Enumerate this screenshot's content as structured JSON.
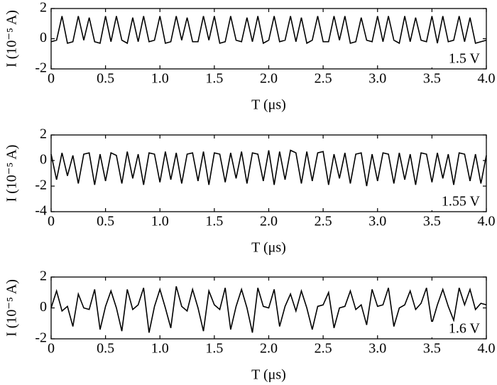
{
  "chart_data": [
    {
      "type": "line",
      "y_label": "I (10⁻⁵ A)",
      "x_label": "T (μs)",
      "annotation": "1.5 V",
      "color": "#000000",
      "xlim": [
        0,
        4
      ],
      "ylim": [
        -2,
        2
      ],
      "xticks": [
        0,
        0.5,
        {
          "value": 1,
          "label": "1.0"
        },
        1.5,
        {
          "value": 2,
          "label": "2.0"
        },
        2.5,
        {
          "value": 3,
          "label": "3.0"
        },
        3.5,
        {
          "value": 4,
          "label": "4.0"
        }
      ],
      "yticks": [
        -2,
        0,
        2
      ],
      "x": [
        0,
        0.05,
        0.1,
        0.15,
        0.2,
        0.25,
        0.3,
        0.35,
        0.4,
        0.45,
        0.5,
        0.55,
        0.6,
        0.65,
        0.7,
        0.75,
        0.8,
        0.85,
        0.9,
        0.95,
        1,
        1.05,
        1.1,
        1.15,
        1.2,
        1.25,
        1.3,
        1.35,
        1.4,
        1.45,
        1.5,
        1.55,
        1.6,
        1.65,
        1.7,
        1.75,
        1.8,
        1.85,
        1.9,
        1.95,
        2,
        2.05,
        2.1,
        2.15,
        2.2,
        2.25,
        2.3,
        2.35,
        2.4,
        2.45,
        2.5,
        2.55,
        2.6,
        2.65,
        2.7,
        2.75,
        2.8,
        2.85,
        2.9,
        2.95,
        3,
        3.05,
        3.1,
        3.15,
        3.2,
        3.25,
        3.3,
        3.35,
        3.4,
        3.45,
        3.5,
        3.55,
        3.6,
        3.65,
        3.7,
        3.75,
        3.8,
        3.85,
        3.9,
        3.95,
        4
      ],
      "values": [
        -0.2,
        -0.1,
        1.5,
        -0.3,
        -0.2,
        1.5,
        -0.1,
        1.4,
        -0.2,
        -0.3,
        1.5,
        -0.2,
        1.5,
        -0.1,
        -0.3,
        1.4,
        -0.2,
        1.5,
        -0.2,
        -0.1,
        1.5,
        -0.3,
        -0.2,
        1.5,
        -0.1,
        1.4,
        -0.2,
        -0.2,
        1.5,
        -0.1,
        1.5,
        -0.3,
        -0.2,
        1.5,
        -0.1,
        -0.2,
        1.4,
        -0.2,
        1.5,
        -0.3,
        -0.1,
        1.5,
        -0.2,
        -0.1,
        1.5,
        -0.2,
        1.4,
        -0.3,
        -0.1,
        1.5,
        -0.2,
        -0.2,
        1.5,
        -0.1,
        1.5,
        -0.3,
        -0.2,
        1.4,
        -0.1,
        -0.2,
        1.5,
        -0.2,
        1.5,
        -0.1,
        -0.3,
        1.5,
        -0.2,
        1.4,
        -0.1,
        -0.2,
        1.5,
        -0.3,
        1.5,
        -0.2,
        -0.1,
        1.5,
        -0.2,
        1.4,
        -0.3,
        -0.2,
        -0.1
      ]
    },
    {
      "type": "line",
      "y_label": "I (10⁻⁵ A)",
      "x_label": "T (μs)",
      "annotation": "1.55 V",
      "color": "#000000",
      "xlim": [
        0,
        4
      ],
      "ylim": [
        -4,
        2
      ],
      "xticks": [
        0,
        0.5,
        {
          "value": 1,
          "label": "1.0"
        },
        1.5,
        {
          "value": 2,
          "label": "2.0"
        },
        2.5,
        {
          "value": 3,
          "label": "3.0"
        },
        3.5,
        {
          "value": 4,
          "label": "4.0"
        }
      ],
      "yticks": [
        -4,
        -2,
        0,
        2
      ],
      "x": [
        0,
        0.05,
        0.1,
        0.15,
        0.2,
        0.25,
        0.3,
        0.35,
        0.4,
        0.45,
        0.5,
        0.55,
        0.6,
        0.65,
        0.7,
        0.75,
        0.8,
        0.85,
        0.9,
        0.95,
        1,
        1.05,
        1.1,
        1.15,
        1.2,
        1.25,
        1.3,
        1.35,
        1.4,
        1.45,
        1.5,
        1.55,
        1.6,
        1.65,
        1.7,
        1.75,
        1.8,
        1.85,
        1.9,
        1.95,
        2,
        2.05,
        2.1,
        2.15,
        2.2,
        2.25,
        2.3,
        2.35,
        2.4,
        2.45,
        2.5,
        2.55,
        2.6,
        2.65,
        2.7,
        2.75,
        2.8,
        2.85,
        2.9,
        2.95,
        3,
        3.05,
        3.1,
        3.15,
        3.2,
        3.25,
        3.3,
        3.35,
        3.4,
        3.45,
        3.5,
        3.55,
        3.6,
        3.65,
        3.7,
        3.75,
        3.8,
        3.85,
        3.9,
        3.95,
        4
      ],
      "values": [
        0.5,
        -1.5,
        0.6,
        -1.2,
        0.4,
        -1.8,
        0.5,
        0.6,
        -1.9,
        0.5,
        -1.6,
        0.6,
        0.4,
        -1.8,
        0.7,
        -1.4,
        0.5,
        -1.9,
        0.6,
        0.5,
        -1.7,
        0.7,
        -1.5,
        0.6,
        -1.8,
        0.5,
        0.6,
        -1.6,
        0.7,
        -1.9,
        0.6,
        0.5,
        -1.7,
        0.6,
        -1.4,
        0.7,
        -1.8,
        0.6,
        0.5,
        -1.6,
        0.8,
        -1.9,
        0.7,
        -1.5,
        0.8,
        0.6,
        -1.8,
        0.7,
        -1.6,
        0.6,
        0.7,
        -1.9,
        0.5,
        -1.4,
        0.6,
        -1.8,
        0.5,
        0.6,
        -2.0,
        0.5,
        -1.6,
        0.6,
        0.5,
        -1.8,
        0.6,
        -1.5,
        0.5,
        -1.9,
        0.6,
        0.5,
        -1.7,
        0.6,
        -1.4,
        0.5,
        -1.9,
        0.6,
        0.5,
        -1.6,
        0.5,
        -1.8,
        0.4
      ]
    },
    {
      "type": "line",
      "y_label": "I (10⁻⁵ A)",
      "x_label": "T (μs)",
      "annotation": "1.6 V",
      "color": "#000000",
      "xlim": [
        0,
        4
      ],
      "ylim": [
        -2,
        2
      ],
      "xticks": [
        0,
        0.5,
        {
          "value": 1,
          "label": "1.0"
        },
        1.5,
        {
          "value": 2,
          "label": "2.0"
        },
        2.5,
        {
          "value": 3,
          "label": "3.0"
        },
        3.5,
        {
          "value": 4,
          "label": "4.0"
        }
      ],
      "yticks": [
        -2,
        0,
        2
      ],
      "x": [
        0,
        0.05,
        0.1,
        0.15,
        0.2,
        0.25,
        0.3,
        0.35,
        0.4,
        0.45,
        0.5,
        0.55,
        0.6,
        0.65,
        0.7,
        0.75,
        0.8,
        0.85,
        0.9,
        0.95,
        1,
        1.05,
        1.1,
        1.15,
        1.2,
        1.25,
        1.3,
        1.35,
        1.4,
        1.45,
        1.5,
        1.55,
        1.6,
        1.65,
        1.7,
        1.75,
        1.8,
        1.85,
        1.9,
        1.95,
        2,
        2.05,
        2.1,
        2.15,
        2.2,
        2.25,
        2.3,
        2.35,
        2.4,
        2.45,
        2.5,
        2.55,
        2.6,
        2.65,
        2.7,
        2.75,
        2.8,
        2.85,
        2.9,
        2.95,
        3,
        3.05,
        3.1,
        3.15,
        3.2,
        3.25,
        3.3,
        3.35,
        3.4,
        3.45,
        3.5,
        3.55,
        3.6,
        3.65,
        3.7,
        3.75,
        3.8,
        3.85,
        3.9,
        3.95,
        4
      ],
      "values": [
        0,
        1.1,
        -0.2,
        0.1,
        -1.2,
        0.9,
        0,
        -0.1,
        1.2,
        -1.4,
        0.1,
        1.1,
        0,
        -1.5,
        1.2,
        -0.1,
        0.2,
        1.3,
        -1.6,
        0.1,
        1.2,
        0,
        -1.3,
        1.4,
        0.1,
        -0.2,
        1.2,
        0,
        -1.5,
        1.1,
        0.2,
        -0.1,
        1.3,
        -1.4,
        0.1,
        1.2,
        0,
        -1.6,
        1.3,
        0.1,
        0,
        1.2,
        -1.2,
        0.1,
        0.9,
        -0.2,
        1.1,
        0,
        -1.4,
        0.1,
        0.2,
        1.0,
        -1.3,
        0,
        0.1,
        1.1,
        -0.1,
        0.2,
        -1.1,
        1.2,
        0.1,
        0.2,
        1.3,
        -1.2,
        0,
        0.2,
        1.1,
        -0.1,
        0.3,
        1.3,
        -1.0,
        0.2,
        1.2,
        0.1,
        -0.8,
        1.3,
        0.2,
        1.2,
        -0.1,
        0.3,
        0.2
      ]
    }
  ]
}
